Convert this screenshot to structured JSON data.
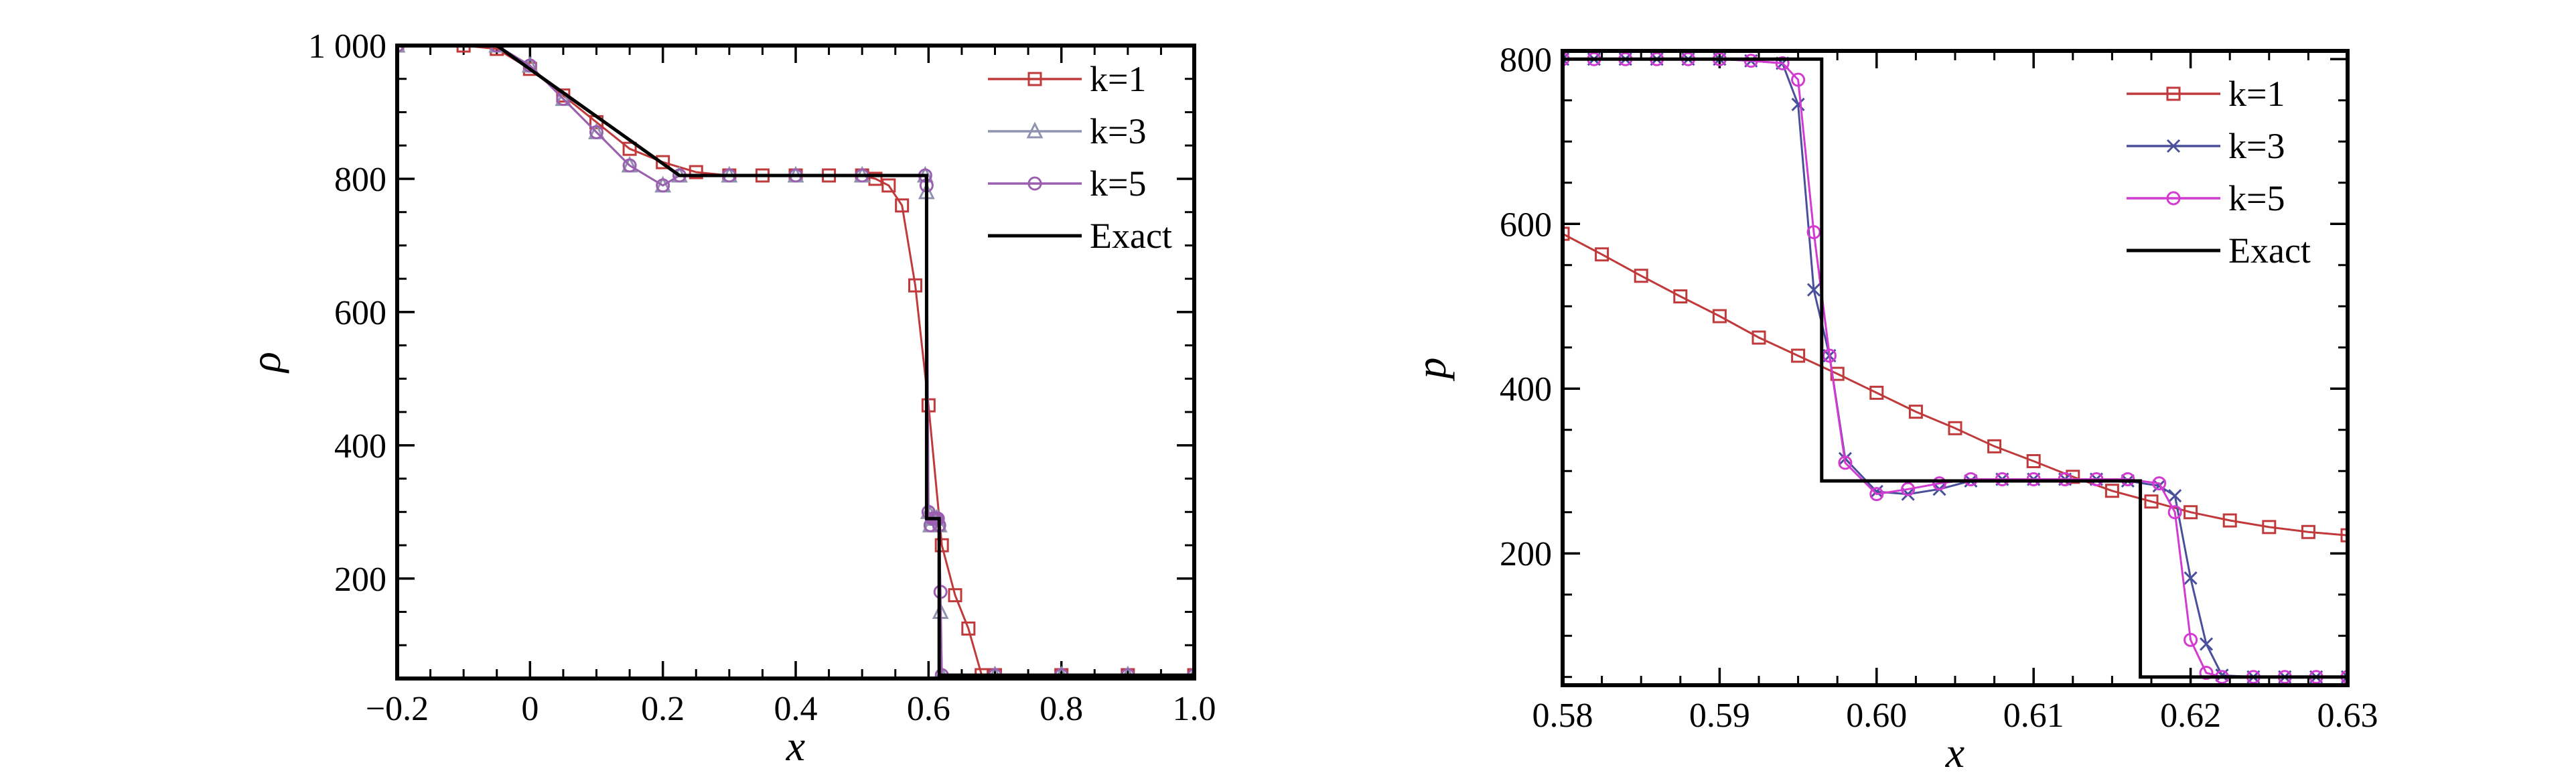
{
  "chart_data": [
    {
      "type": "line",
      "title": "",
      "xlabel": "x",
      "ylabel": "ρ",
      "xlim": [
        -0.2,
        1.0
      ],
      "ylim": [
        50,
        1000
      ],
      "xticks": [
        -0.2,
        0,
        0.2,
        0.4,
        0.6,
        0.8,
        1.0
      ],
      "xtick_labels": [
        "−0.2",
        "0",
        "0.2",
        "0.4",
        "0.6",
        "0.8",
        "1.0"
      ],
      "yticks": [
        200,
        400,
        600,
        800,
        1000
      ],
      "ytick_labels": [
        "200",
        "400",
        "600",
        "800",
        "1 000"
      ],
      "legend_position": "top-right",
      "series": [
        {
          "name": "k=1",
          "color": "#c0393b",
          "marker": "square",
          "x": [
            -0.2,
            -0.1,
            -0.05,
            0.0,
            0.05,
            0.1,
            0.15,
            0.2,
            0.25,
            0.3,
            0.35,
            0.4,
            0.45,
            0.5,
            0.52,
            0.54,
            0.56,
            0.58,
            0.6,
            0.62,
            0.64,
            0.66,
            0.68,
            0.7,
            0.8,
            0.9,
            1.0
          ],
          "y": [
            1000,
            1000,
            995,
            965,
            925,
            885,
            845,
            825,
            810,
            805,
            805,
            805,
            805,
            805,
            800,
            790,
            760,
            640,
            460,
            250,
            175,
            125,
            55,
            55,
            55,
            55,
            55
          ]
        },
        {
          "name": "k=3",
          "color": "#8f93ad",
          "marker": "triangle",
          "x": [
            -0.2,
            -0.05,
            0.0,
            0.05,
            0.1,
            0.15,
            0.2,
            0.225,
            0.3,
            0.4,
            0.5,
            0.595,
            0.597,
            0.6,
            0.603,
            0.606,
            0.608,
            0.612,
            0.614,
            0.616,
            0.618,
            0.62,
            0.7,
            0.8,
            0.9,
            1.0
          ],
          "y": [
            1000,
            1000,
            970,
            920,
            870,
            820,
            790,
            805,
            805,
            805,
            805,
            805,
            780,
            300,
            280,
            290,
            290,
            290,
            290,
            280,
            150,
            55,
            55,
            55,
            55,
            55
          ]
        },
        {
          "name": "k=5",
          "color": "#9b5fb0",
          "marker": "circle",
          "x": [
            -0.2,
            -0.05,
            0.0,
            0.05,
            0.1,
            0.15,
            0.2,
            0.225,
            0.3,
            0.4,
            0.5,
            0.595,
            0.597,
            0.6,
            0.603,
            0.606,
            0.608,
            0.612,
            0.614,
            0.616,
            0.618,
            0.62,
            0.7,
            0.8,
            0.9,
            1.0
          ],
          "y": [
            1000,
            1000,
            970,
            920,
            870,
            820,
            790,
            805,
            805,
            805,
            805,
            805,
            790,
            300,
            280,
            290,
            290,
            290,
            290,
            280,
            180,
            55,
            55,
            55,
            55,
            55
          ]
        },
        {
          "name": "Exact",
          "color": "#000000",
          "marker": "none",
          "x": [
            -0.2,
            -0.05,
            0.225,
            0.597,
            0.597,
            0.616,
            0.616,
            1.0
          ],
          "y": [
            1000,
            1000,
            805,
            805,
            290,
            290,
            55,
            55
          ]
        }
      ]
    },
    {
      "type": "line",
      "title": "",
      "xlabel": "x",
      "ylabel": "p",
      "xlim": [
        0.58,
        0.63
      ],
      "ylim": [
        40,
        810
      ],
      "xticks": [
        0.58,
        0.59,
        0.6,
        0.61,
        0.62,
        0.63
      ],
      "xtick_labels": [
        "0.58",
        "0.59",
        "0.60",
        "0.61",
        "0.62",
        "0.63"
      ],
      "yticks": [
        200,
        400,
        600,
        800
      ],
      "ytick_labels": [
        "200",
        "400",
        "600",
        "800"
      ],
      "legend_position": "top-right",
      "series": [
        {
          "name": "k=1",
          "color": "#c0393b",
          "marker": "square",
          "x": [
            0.58,
            0.5825,
            0.585,
            0.5875,
            0.59,
            0.5925,
            0.595,
            0.5975,
            0.6,
            0.6025,
            0.605,
            0.6075,
            0.61,
            0.6125,
            0.615,
            0.6175,
            0.62,
            0.6225,
            0.625,
            0.6275,
            0.63
          ],
          "y": [
            588,
            563,
            537,
            512,
            488,
            462,
            440,
            418,
            395,
            372,
            352,
            330,
            312,
            293,
            276,
            263,
            250,
            240,
            232,
            226,
            222
          ]
        },
        {
          "name": "k=3",
          "color": "#4a4f9c",
          "marker": "cross",
          "x": [
            0.58,
            0.582,
            0.584,
            0.586,
            0.588,
            0.59,
            0.592,
            0.594,
            0.595,
            0.596,
            0.597,
            0.598,
            0.6,
            0.602,
            0.604,
            0.606,
            0.608,
            0.61,
            0.612,
            0.614,
            0.616,
            0.618,
            0.619,
            0.62,
            0.621,
            0.622,
            0.624,
            0.626,
            0.628,
            0.63
          ],
          "y": [
            800,
            800,
            800,
            800,
            800,
            800,
            798,
            795,
            745,
            520,
            440,
            315,
            275,
            272,
            278,
            288,
            290,
            290,
            290,
            290,
            288,
            282,
            270,
            170,
            90,
            52,
            50,
            50,
            50,
            50
          ]
        },
        {
          "name": "k=5",
          "color": "#d23ad2",
          "marker": "circle",
          "x": [
            0.58,
            0.582,
            0.584,
            0.586,
            0.588,
            0.59,
            0.592,
            0.594,
            0.595,
            0.596,
            0.597,
            0.598,
            0.6,
            0.602,
            0.604,
            0.606,
            0.608,
            0.61,
            0.612,
            0.614,
            0.616,
            0.618,
            0.619,
            0.62,
            0.621,
            0.622,
            0.624,
            0.626,
            0.628,
            0.63
          ],
          "y": [
            800,
            800,
            800,
            800,
            800,
            800,
            798,
            795,
            775,
            590,
            440,
            310,
            272,
            278,
            285,
            290,
            290,
            290,
            290,
            290,
            290,
            285,
            250,
            95,
            55,
            50,
            50,
            50,
            50,
            50
          ]
        },
        {
          "name": "Exact",
          "color": "#000000",
          "marker": "none",
          "x": [
            0.58,
            0.5965,
            0.5965,
            0.6168,
            0.6168,
            0.63
          ],
          "y": [
            800,
            800,
            288,
            288,
            50,
            50
          ]
        }
      ]
    }
  ]
}
